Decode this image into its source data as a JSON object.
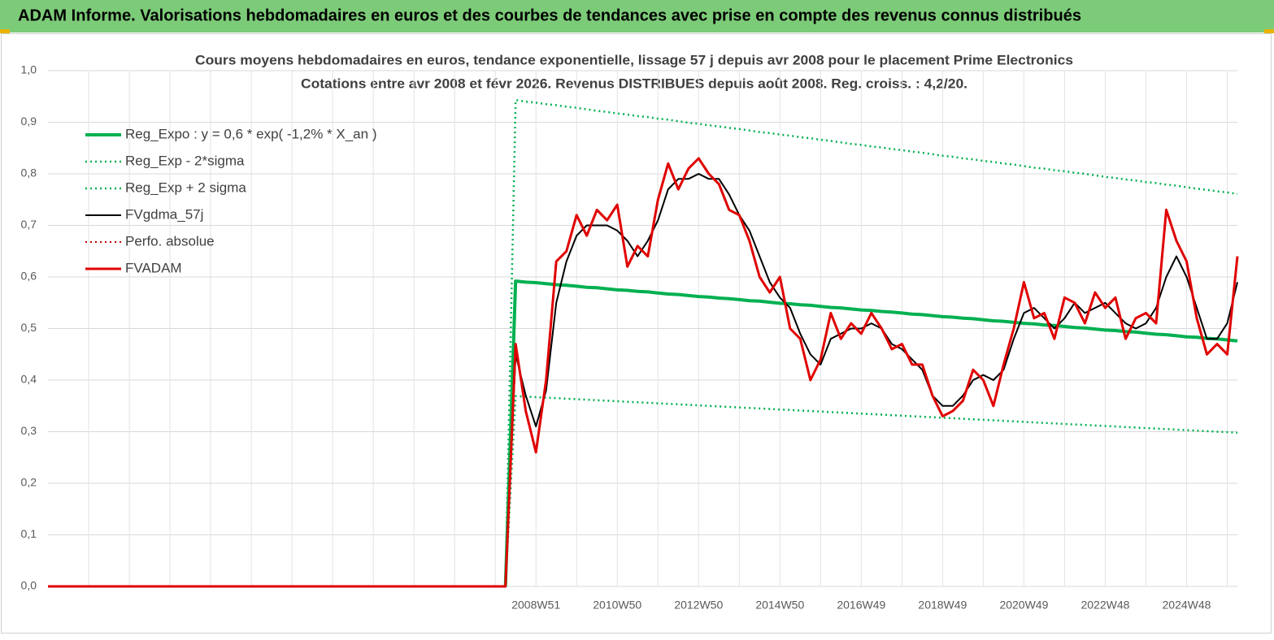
{
  "chart_data": {
    "type": "line",
    "header": "ADAM Informe. Valorisations hebdomadaires en euros et des courbes de tendances avec prise en compte des revenus connus distribués",
    "title": "Cours moyens hebdomadaires en euros, tendance exponentielle, lissage 57 j depuis avr 2008 pour le placement Prime Electronics",
    "subtitle": "Cotations entre avr 2008 et févr 2026. Revenus DISTRIBUES depuis août 2008. Reg. croiss. : 4,2/20.",
    "legend": "upper left",
    "grid": true,
    "ylim": [
      0,
      1
    ],
    "yticks": [
      {
        "value": 0,
        "label": "0,0"
      },
      {
        "value": 0.1,
        "label": "0,1"
      },
      {
        "value": 0.2,
        "label": "0,2"
      },
      {
        "value": 0.3,
        "label": "0,3"
      },
      {
        "value": 0.4,
        "label": "0,4"
      },
      {
        "value": 0.5,
        "label": "0,5"
      },
      {
        "value": 0.6,
        "label": "0,6"
      },
      {
        "value": 0.7,
        "label": "0,7"
      },
      {
        "value": 0.8,
        "label": "0,8"
      },
      {
        "value": 0.9,
        "label": "0,9"
      },
      {
        "value": 1,
        "label": "1,0"
      }
    ],
    "categories": [
      null,
      null,
      null,
      null,
      null,
      null,
      null,
      null,
      null,
      null,
      null,
      null,
      null,
      null,
      null,
      null,
      null,
      null,
      null,
      null,
      null,
      null,
      null,
      null,
      null,
      null,
      null,
      null,
      null,
      null,
      null,
      null,
      null,
      null,
      null,
      null,
      null,
      null,
      null,
      null,
      null,
      null,
      null,
      null,
      null,
      null,
      null,
      null,
      "2008W51",
      null,
      null,
      null,
      null,
      null,
      null,
      null,
      "2010W50",
      null,
      null,
      null,
      null,
      null,
      null,
      null,
      "2012W50",
      null,
      null,
      null,
      null,
      null,
      null,
      null,
      "2014W50",
      null,
      null,
      null,
      null,
      null,
      null,
      null,
      "2016W49",
      null,
      null,
      null,
      null,
      null,
      null,
      null,
      "2018W49",
      null,
      null,
      null,
      null,
      null,
      null,
      null,
      "2020W49",
      null,
      null,
      null,
      null,
      null,
      null,
      null,
      "2022W48",
      null,
      null,
      null,
      null,
      null,
      null,
      null,
      "2024W48",
      null,
      null,
      null,
      null,
      null
    ],
    "series": [
      {
        "name": "Reg_Expo : y = 0,6 * exp( -1,2% *  X_an )",
        "color": "#00b050",
        "style": "solid",
        "width": 4,
        "values": [
          null,
          null,
          null,
          null,
          null,
          null,
          null,
          null,
          null,
          null,
          null,
          null,
          null,
          null,
          null,
          null,
          null,
          null,
          null,
          null,
          null,
          null,
          null,
          null,
          null,
          null,
          null,
          null,
          null,
          null,
          null,
          null,
          null,
          null,
          null,
          null,
          null,
          null,
          null,
          null,
          null,
          null,
          null,
          null,
          null,
          0,
          0.592,
          0.59,
          0.589,
          0.587,
          0.585,
          0.584,
          0.582,
          0.58,
          0.579,
          0.577,
          0.575,
          0.574,
          0.572,
          0.571,
          0.569,
          0.567,
          0.566,
          0.564,
          0.562,
          0.561,
          0.559,
          0.558,
          0.556,
          0.554,
          0.553,
          0.551,
          0.549,
          0.548,
          0.546,
          0.545,
          0.543,
          0.541,
          0.54,
          0.538,
          0.536,
          0.535,
          0.533,
          0.532,
          0.53,
          0.528,
          0.527,
          0.525,
          0.523,
          0.522,
          0.52,
          0.519,
          0.517,
          0.515,
          0.514,
          0.512,
          0.51,
          0.509,
          0.507,
          0.506,
          0.504,
          0.502,
          0.501,
          0.499,
          0.497,
          0.496,
          0.494,
          0.493,
          0.491,
          0.489,
          0.488,
          0.486,
          0.484,
          0.483,
          0.481,
          0.48,
          0.478,
          0.476
        ]
      },
      {
        "name": "Reg_Exp - 2*sigma",
        "color": "#00b050",
        "style": "dotted",
        "width": 2.5,
        "values": [
          null,
          null,
          null,
          null,
          null,
          null,
          null,
          null,
          null,
          null,
          null,
          null,
          null,
          null,
          null,
          null,
          null,
          null,
          null,
          null,
          null,
          null,
          null,
          null,
          null,
          null,
          null,
          null,
          null,
          null,
          null,
          null,
          null,
          null,
          null,
          null,
          null,
          null,
          null,
          null,
          null,
          null,
          null,
          null,
          null,
          0,
          0.369,
          0.368,
          0.367,
          0.366,
          0.365,
          0.364,
          0.363,
          0.362,
          0.361,
          0.36,
          0.359,
          0.358,
          0.357,
          0.356,
          0.355,
          0.354,
          0.353,
          0.352,
          0.351,
          0.35,
          0.349,
          0.348,
          0.347,
          0.346,
          0.345,
          0.344,
          0.343,
          0.342,
          0.341,
          0.34,
          0.339,
          0.338,
          0.337,
          0.336,
          0.335,
          0.334,
          0.333,
          0.332,
          0.331,
          0.33,
          0.329,
          0.328,
          0.327,
          0.326,
          0.325,
          0.324,
          0.323,
          0.322,
          0.321,
          0.32,
          0.319,
          0.318,
          0.317,
          0.316,
          0.315,
          0.314,
          0.313,
          0.312,
          0.311,
          0.31,
          0.309,
          0.308,
          0.307,
          0.306,
          0.305,
          0.304,
          0.303,
          0.302,
          0.301,
          0.3,
          0.299,
          0.298
        ]
      },
      {
        "name": "Reg_Exp + 2 sigma",
        "color": "#00b050",
        "style": "dotted",
        "width": 2.5,
        "values": [
          null,
          null,
          null,
          null,
          null,
          null,
          null,
          null,
          null,
          null,
          null,
          null,
          null,
          null,
          null,
          null,
          null,
          null,
          null,
          null,
          null,
          null,
          null,
          null,
          null,
          null,
          null,
          null,
          null,
          null,
          null,
          null,
          null,
          null,
          null,
          null,
          null,
          null,
          null,
          null,
          null,
          null,
          null,
          null,
          null,
          0,
          0.943,
          0.94,
          0.938,
          0.935,
          0.933,
          0.93,
          0.928,
          0.925,
          0.922,
          0.92,
          0.917,
          0.915,
          0.912,
          0.91,
          0.907,
          0.905,
          0.902,
          0.899,
          0.897,
          0.894,
          0.892,
          0.889,
          0.887,
          0.884,
          0.881,
          0.879,
          0.876,
          0.874,
          0.871,
          0.869,
          0.866,
          0.864,
          0.861,
          0.858,
          0.856,
          0.853,
          0.851,
          0.848,
          0.846,
          0.843,
          0.841,
          0.838,
          0.835,
          0.833,
          0.83,
          0.828,
          0.825,
          0.823,
          0.82,
          0.818,
          0.815,
          0.812,
          0.81,
          0.807,
          0.805,
          0.802,
          0.8,
          0.797,
          0.794,
          0.792,
          0.789,
          0.787,
          0.784,
          0.782,
          0.779,
          0.777,
          0.774,
          0.771,
          0.769,
          0.766,
          0.764,
          0.761
        ]
      },
      {
        "name": "FVgdma_57j",
        "color": "#000000",
        "style": "solid",
        "width": 2,
        "values": [
          0,
          0,
          0,
          0,
          0,
          0,
          0,
          0,
          0,
          0,
          0,
          0,
          0,
          0,
          0,
          0,
          0,
          0,
          0,
          0,
          0,
          0,
          0,
          0,
          0,
          0,
          0,
          0,
          0,
          0,
          0,
          0,
          0,
          0,
          0,
          0,
          0,
          0,
          0,
          0,
          0,
          0,
          0,
          0,
          0,
          0,
          0.45,
          0.37,
          0.31,
          0.38,
          0.55,
          0.63,
          0.68,
          0.7,
          0.7,
          0.7,
          0.69,
          0.67,
          0.64,
          0.67,
          0.71,
          0.77,
          0.79,
          0.79,
          0.8,
          0.79,
          0.79,
          0.76,
          0.72,
          0.69,
          0.64,
          0.59,
          0.56,
          0.54,
          0.49,
          0.45,
          0.43,
          0.48,
          0.49,
          0.5,
          0.5,
          0.51,
          0.5,
          0.47,
          0.46,
          0.44,
          0.42,
          0.37,
          0.35,
          0.35,
          0.37,
          0.4,
          0.41,
          0.4,
          0.42,
          0.48,
          0.53,
          0.54,
          0.52,
          0.5,
          0.52,
          0.55,
          0.53,
          0.54,
          0.55,
          0.53,
          0.51,
          0.5,
          0.51,
          0.54,
          0.6,
          0.64,
          0.6,
          0.54,
          0.48,
          0.48,
          0.51,
          0.59
        ]
      },
      {
        "name": "Perfo. absolue",
        "color": "#c00000",
        "style": "dotted",
        "width": 2,
        "values": [
          0,
          0,
          0,
          0,
          0,
          0,
          0,
          0,
          0,
          0,
          0,
          0,
          0,
          0,
          0,
          0,
          0,
          0,
          0,
          0,
          0,
          0,
          0,
          0,
          0,
          0,
          0,
          0,
          0,
          0,
          0,
          0,
          0,
          0,
          0,
          0,
          0,
          0,
          0,
          0,
          0,
          0,
          0,
          0,
          0,
          0,
          null,
          null,
          null,
          null,
          null,
          null,
          null,
          null,
          null,
          null,
          null,
          null,
          null,
          null,
          null,
          null,
          null,
          null,
          null,
          null,
          null,
          null,
          null,
          null,
          null,
          null,
          null,
          null,
          null,
          null,
          null,
          null,
          null,
          null,
          null,
          null,
          null,
          null,
          null,
          null,
          null,
          null,
          null,
          null,
          null,
          null,
          null,
          null,
          null,
          null,
          null,
          null,
          null,
          null,
          null,
          null,
          null,
          null,
          null,
          null,
          null,
          null,
          null,
          null,
          null,
          null,
          null,
          null,
          null,
          null,
          null,
          null
        ]
      },
      {
        "name": "FVADAM",
        "color": "#e00000",
        "style": "solid",
        "width": 3,
        "values": [
          0,
          0,
          0,
          0,
          0,
          0,
          0,
          0,
          0,
          0,
          0,
          0,
          0,
          0,
          0,
          0,
          0,
          0,
          0,
          0,
          0,
          0,
          0,
          0,
          0,
          0,
          0,
          0,
          0,
          0,
          0,
          0,
          0,
          0,
          0,
          0,
          0,
          0,
          0,
          0,
          0,
          0,
          0,
          0,
          0,
          0,
          0.47,
          0.34,
          0.26,
          0.4,
          0.63,
          0.65,
          0.72,
          0.68,
          0.73,
          0.71,
          0.74,
          0.62,
          0.66,
          0.64,
          0.75,
          0.82,
          0.77,
          0.81,
          0.83,
          0.8,
          0.78,
          0.73,
          0.72,
          0.67,
          0.6,
          0.57,
          0.6,
          0.5,
          0.48,
          0.4,
          0.44,
          0.53,
          0.48,
          0.51,
          0.49,
          0.53,
          0.5,
          0.46,
          0.47,
          0.43,
          0.43,
          0.37,
          0.33,
          0.34,
          0.36,
          0.42,
          0.4,
          0.35,
          0.43,
          0.5,
          0.59,
          0.52,
          0.53,
          0.48,
          0.56,
          0.55,
          0.51,
          0.57,
          0.54,
          0.56,
          0.48,
          0.52,
          0.53,
          0.51,
          0.73,
          0.67,
          0.63,
          0.52,
          0.45,
          0.47,
          0.45,
          0.64
        ]
      }
    ]
  }
}
